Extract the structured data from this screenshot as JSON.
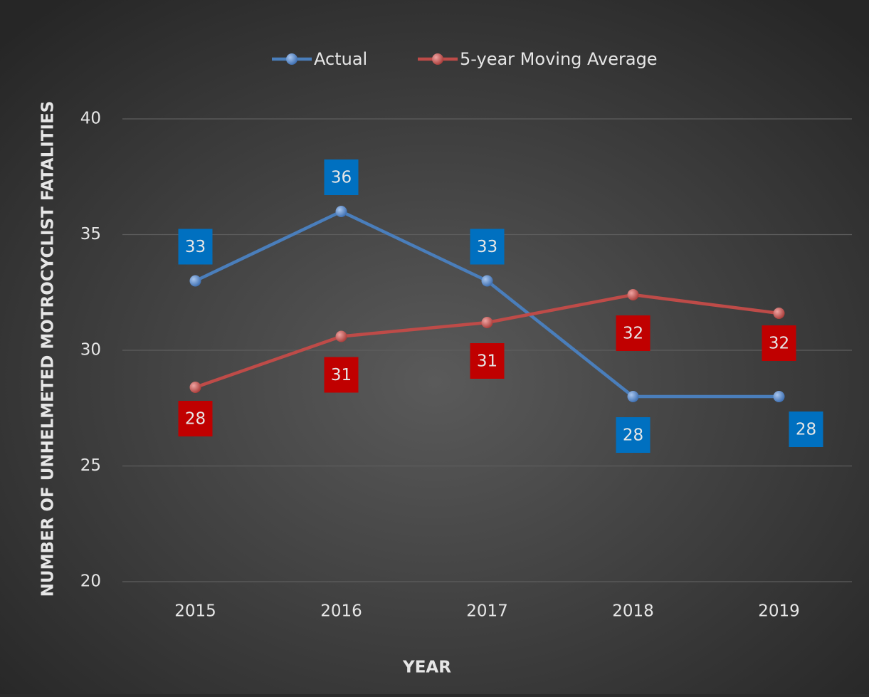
{
  "chart_data": {
    "type": "line",
    "categories": [
      "2015",
      "2016",
      "2017",
      "2018",
      "2019"
    ],
    "series": [
      {
        "name": "Actual",
        "color": "#4a7ebb",
        "label_color": "#0070c0",
        "values": [
          33,
          36,
          33,
          28,
          28
        ]
      },
      {
        "name": "5-year Moving Average",
        "color": "#be4b48",
        "label_color": "#c00000",
        "values": [
          28.4,
          30.6,
          31.2,
          32.4,
          31.6
        ],
        "value_labels": [
          "28",
          "31",
          "31",
          "32",
          "32"
        ]
      }
    ],
    "x_label": "YEAR",
    "y_label": "NUMBER OF UNHELMETED MOTROCYCLIST FATALITIES",
    "ylim": [
      20,
      40
    ],
    "yticks": [
      20,
      25,
      30,
      35,
      40
    ],
    "grid": true,
    "legend": "top"
  }
}
